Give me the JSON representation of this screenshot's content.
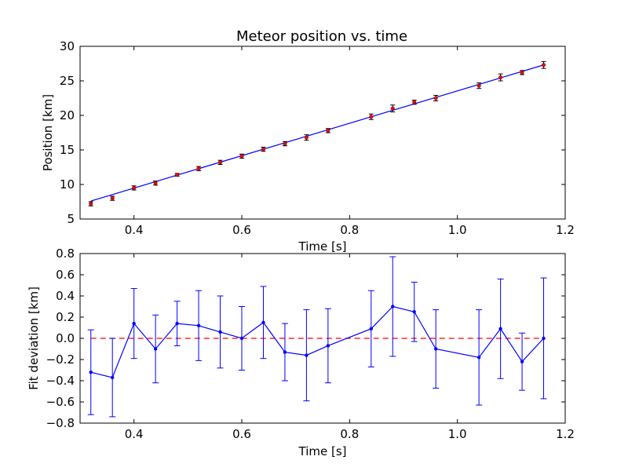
{
  "chart_data": [
    {
      "type": "scatter",
      "title": "Meteor position vs. time",
      "xlabel": "Time [s]",
      "ylabel": "Position [km]",
      "xlim": [
        0.3,
        1.2
      ],
      "ylim": [
        5,
        30
      ],
      "xticks": [
        "0.4",
        "0.6",
        "0.8",
        "1.0",
        "1.2"
      ],
      "yticks": [
        "5",
        "10",
        "15",
        "20",
        "25",
        "30"
      ],
      "colors": {
        "points": "#ff0000",
        "errorbars": "#000000",
        "fit": "#0000ff"
      },
      "series": [
        {
          "kind": "points_with_errorbars",
          "x": [
            0.32,
            0.36,
            0.4,
            0.44,
            0.48,
            0.52,
            0.56,
            0.6,
            0.64,
            0.68,
            0.72,
            0.76,
            0.84,
            0.88,
            0.92,
            0.96,
            1.04,
            1.08,
            1.12,
            1.16
          ],
          "y": [
            7.2,
            8.0,
            9.5,
            10.2,
            11.4,
            12.3,
            13.2,
            14.1,
            15.1,
            15.9,
            16.8,
            17.8,
            19.8,
            21.0,
            21.9,
            22.5,
            24.3,
            25.5,
            26.2,
            27.3
          ],
          "yerr": [
            0.3,
            0.3,
            0.3,
            0.3,
            0.2,
            0.3,
            0.3,
            0.3,
            0.3,
            0.3,
            0.4,
            0.3,
            0.4,
            0.5,
            0.3,
            0.4,
            0.4,
            0.5,
            0.3,
            0.5
          ]
        },
        {
          "kind": "fit_line",
          "x": [
            0.32,
            1.16
          ],
          "y": [
            7.6,
            27.3
          ]
        }
      ]
    },
    {
      "type": "line",
      "xlabel": "Time [s]",
      "ylabel": "Fit deviation [km]",
      "xlim": [
        0.3,
        1.2
      ],
      "ylim": [
        -0.8,
        0.8
      ],
      "xticks": [
        "0.4",
        "0.6",
        "0.8",
        "1.0",
        "1.2"
      ],
      "yticks": [
        "−0.8",
        "−0.6",
        "−0.4",
        "−0.2",
        "0.0",
        "0.2",
        "0.4",
        "0.6",
        "0.8"
      ],
      "colors": {
        "series": "#0000ff",
        "zero_line": "#ff0000"
      },
      "zero_line": 0,
      "series": [
        {
          "kind": "line_with_errorbars",
          "x": [
            0.32,
            0.36,
            0.4,
            0.44,
            0.48,
            0.52,
            0.56,
            0.6,
            0.64,
            0.68,
            0.72,
            0.76,
            0.84,
            0.88,
            0.92,
            0.96,
            1.04,
            1.08,
            1.12,
            1.16
          ],
          "y": [
            -0.32,
            -0.37,
            0.14,
            -0.1,
            0.14,
            0.12,
            0.06,
            0.0,
            0.15,
            -0.13,
            -0.16,
            -0.07,
            0.09,
            0.3,
            0.25,
            -0.1,
            -0.18,
            0.09,
            -0.22,
            0.0
          ],
          "yerr": [
            0.4,
            0.37,
            0.33,
            0.32,
            0.21,
            0.33,
            0.34,
            0.3,
            0.34,
            0.27,
            0.43,
            0.35,
            0.36,
            0.47,
            0.28,
            0.37,
            0.45,
            0.47,
            0.27,
            0.57
          ]
        }
      ]
    }
  ]
}
